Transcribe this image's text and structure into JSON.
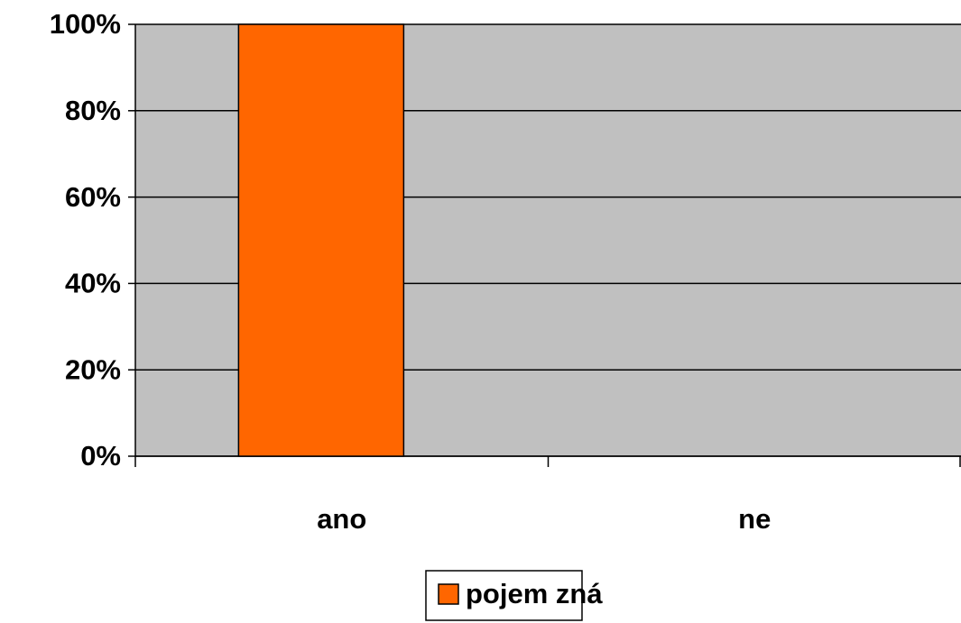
{
  "chart_data": {
    "type": "bar",
    "categories": [
      "ano",
      "ne"
    ],
    "series": [
      {
        "name": "pojem zná",
        "color": "#ff6600",
        "values": [
          100,
          0
        ]
      }
    ],
    "ylim": [
      0,
      100
    ],
    "yticks": [
      {
        "value": 0,
        "label": "0%"
      },
      {
        "value": 20,
        "label": "20%"
      },
      {
        "value": 40,
        "label": "40%"
      },
      {
        "value": 60,
        "label": "60%"
      },
      {
        "value": 80,
        "label": "80%"
      },
      {
        "value": 100,
        "label": "100%"
      }
    ],
    "grid": true,
    "plot_background": "#c0c0c0",
    "legend": "bottom"
  }
}
